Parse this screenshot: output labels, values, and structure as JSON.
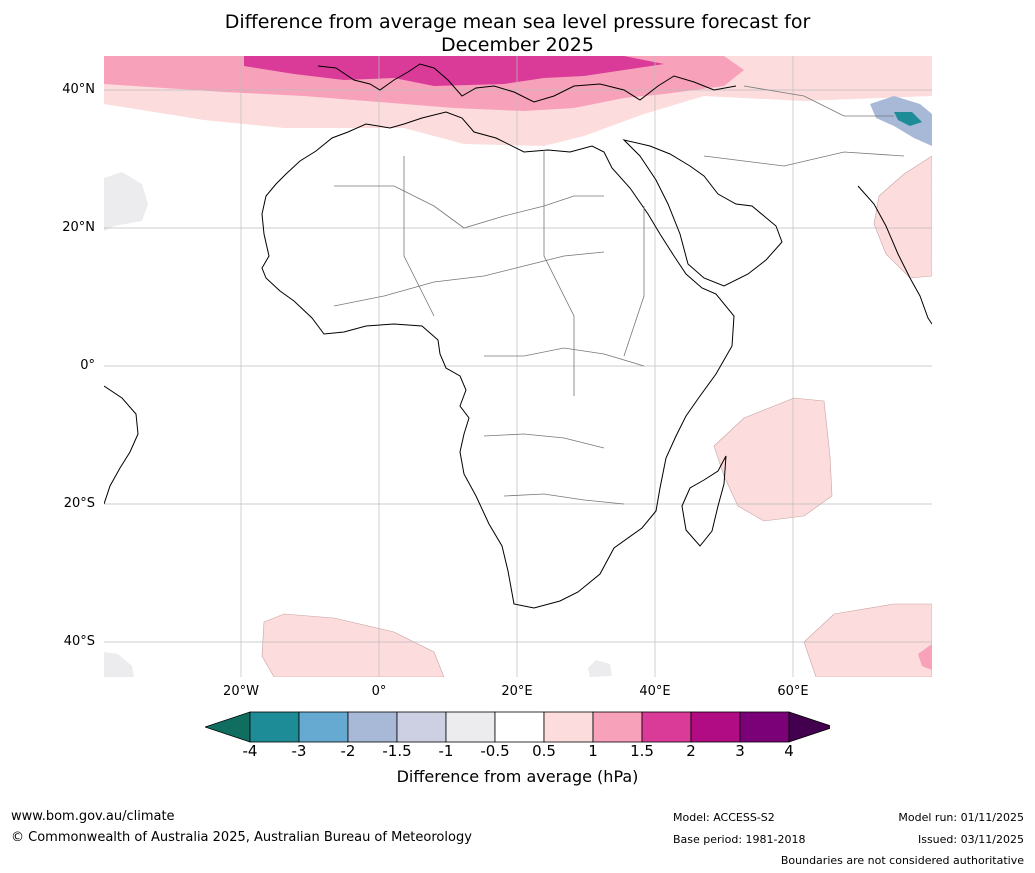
{
  "title_line1": "Difference from average mean sea level pressure forecast for",
  "title_line2": "December 2025",
  "lat_labels": [
    "40°N",
    "20°N",
    "0°",
    "20°S",
    "40°S"
  ],
  "lon_labels": [
    "20°W",
    "0°",
    "20°E",
    "40°E",
    "60°E"
  ],
  "colorbar": {
    "title": "Difference from average (hPa)",
    "ticks": [
      "-4",
      "-3",
      "-2",
      "-1.5",
      "-1",
      "-0.5",
      "0.5",
      "1",
      "1.5",
      "2",
      "3",
      "4"
    ],
    "colors": [
      "#0f6e5f",
      "#1e8c96",
      "#66a9d1",
      "#a8b9d8",
      "#cdd0e3",
      "#ececef",
      "#ffffff",
      "#fcdcdc",
      "#f7a1bb",
      "#db3b98",
      "#b10c84",
      "#7a0177",
      "#43004f"
    ]
  },
  "footer": {
    "website": "www.bom.gov.au/climate",
    "copyright": "© Commonwealth of Australia 2025, Australian Bureau of Meteorology",
    "model": "Model: ACCESS-S2",
    "base_period": "Base period: 1981-2018",
    "model_run": "Model run: 01/11/2025",
    "issued": "Issued: 03/11/2025",
    "disclaimer": "Boundaries are not considered authoritative"
  }
}
